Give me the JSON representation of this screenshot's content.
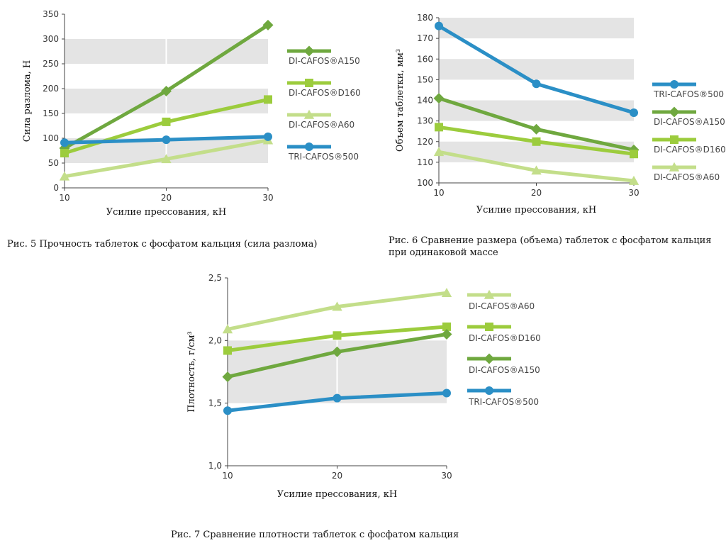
{
  "colors": {
    "A150": "#6fa83f",
    "D160": "#9ccc3d",
    "A60": "#c3de8a",
    "TRI500": "#2b8fc6",
    "band": "#e4e4e4"
  },
  "captions": {
    "fig5": "Рис. 5 Прочность таблеток с фосфатом кальция (сила разлома)",
    "fig6": "Рис. 6 Сравнение размера (объема) таблеток с фосфатом кальция при одинаковой массе",
    "fig7": "Рис. 7 Сравнение плотности таблеток с фосфатом кальция"
  },
  "chart_data": [
    {
      "id": "fig5",
      "type": "line",
      "xlabel": "Усилие прессования, кН",
      "ylabel": "Сила разлома, Н",
      "x": [
        10,
        20,
        30
      ],
      "xticks": [
        "10",
        "20",
        "30"
      ],
      "ylim": [
        0,
        350
      ],
      "yticks": [
        "0",
        "50",
        "100",
        "150",
        "200",
        "250",
        "300",
        "350"
      ],
      "grid": "alternating bands",
      "legend": "right",
      "series": [
        {
          "name": "DI-CAFOS®A150",
          "key": "A150",
          "marker": "diamond",
          "values": [
            80,
            195,
            328
          ]
        },
        {
          "name": "DI-CAFOS®D160",
          "key": "D160",
          "marker": "square",
          "values": [
            70,
            133,
            178
          ]
        },
        {
          "name": "DI-CAFOS®A60",
          "key": "A60",
          "marker": "triangle",
          "values": [
            23,
            58,
            96
          ]
        },
        {
          "name": "TRI-CAFOS®500",
          "key": "TRI500",
          "marker": "circle",
          "values": [
            91,
            97,
            103
          ]
        }
      ]
    },
    {
      "id": "fig6",
      "type": "line",
      "xlabel": "Усилие прессования, кН",
      "ylabel": "Объем таблетки, мм³",
      "x": [
        10,
        20,
        30
      ],
      "xticks": [
        "10",
        "20",
        "30"
      ],
      "ylim": [
        100,
        180
      ],
      "yticks": [
        "100",
        "110",
        "120",
        "130",
        "140",
        "150",
        "160",
        "170",
        "180"
      ],
      "grid": "alternating bands",
      "legend": "right",
      "series": [
        {
          "name": "TRI-CAFOS®500",
          "key": "TRI500",
          "marker": "circle",
          "values": [
            176,
            148,
            134
          ]
        },
        {
          "name": "DI-CAFOS®A150",
          "key": "A150",
          "marker": "diamond",
          "values": [
            141,
            126,
            116
          ]
        },
        {
          "name": "DI-CAFOS®D160",
          "key": "D160",
          "marker": "square",
          "values": [
            127,
            120,
            114
          ]
        },
        {
          "name": "DI-CAFOS®A60",
          "key": "A60",
          "marker": "triangle",
          "values": [
            115,
            106,
            101
          ]
        }
      ]
    },
    {
      "id": "fig7",
      "type": "line",
      "xlabel": "Усилие прессования, кН",
      "ylabel": "Плотность, г/см³",
      "x": [
        10,
        20,
        30
      ],
      "xticks": [
        "10",
        "20",
        "30"
      ],
      "ylim": [
        1.0,
        2.5
      ],
      "yticks": [
        "1,0",
        "1,5",
        "2,0",
        "2,5"
      ],
      "grid": "alternating bands",
      "legend": "right",
      "series": [
        {
          "name": "DI-CAFOS®A60",
          "key": "A60",
          "marker": "triangle",
          "values": [
            2.09,
            2.27,
            2.38
          ]
        },
        {
          "name": "DI-CAFOS®D160",
          "key": "D160",
          "marker": "square",
          "values": [
            1.92,
            2.04,
            2.11
          ]
        },
        {
          "name": "DI-CAFOS®A150",
          "key": "A150",
          "marker": "diamond",
          "values": [
            1.71,
            1.91,
            2.05
          ]
        },
        {
          "name": "TRI-CAFOS®500",
          "key": "TRI500",
          "marker": "circle",
          "values": [
            1.44,
            1.54,
            1.58
          ]
        }
      ]
    }
  ]
}
